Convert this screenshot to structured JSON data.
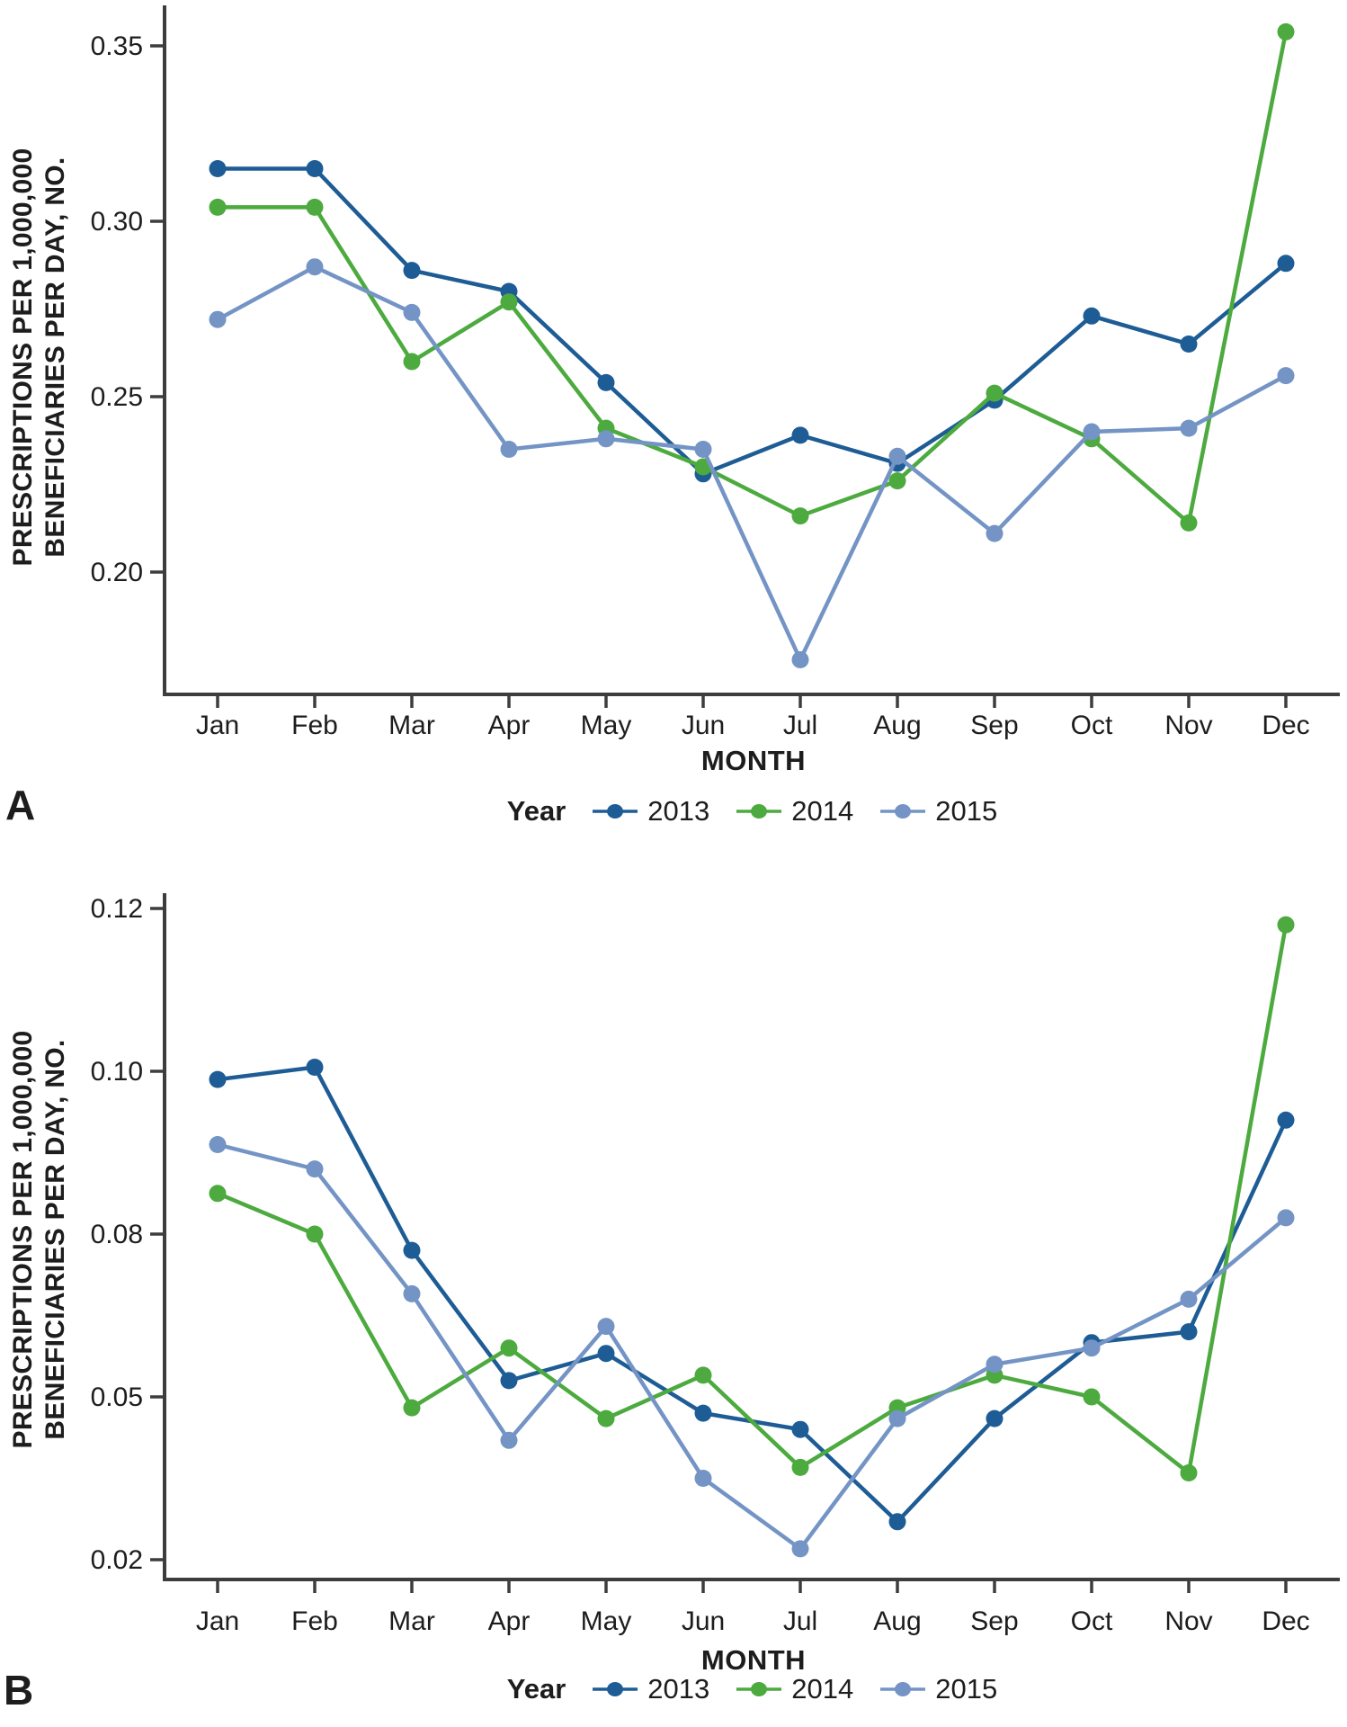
{
  "panels": [
    {
      "panel_label": "A",
      "y_axis_title_line1": "PRESCRIPTIONS PER 1,000,000",
      "y_axis_title_line2": "BENEFICIARIES PER DAY, NO.",
      "x_axis_title": "MONTH",
      "legend_title": "Year"
    },
    {
      "panel_label": "B",
      "y_axis_title_line1": "PRESCRIPTIONS PER 1,000,000",
      "y_axis_title_line2": "BENEFICIARIES PER DAY, NO.",
      "x_axis_title": "MONTH",
      "legend_title": "Year"
    }
  ],
  "colors": {
    "year2013": "#1e5c95",
    "year2014": "#4caa3e",
    "year2015": "#7394c5",
    "axis": "#3d3d3d",
    "text": "#1d1d1d"
  },
  "chart_data": [
    {
      "type": "line",
      "panel": "A",
      "xlabel": "MONTH",
      "ylabel": "PRESCRIPTIONS PER 1,000,000 BENEFICIARIES PER DAY, NO.",
      "categories": [
        "Jan",
        "Feb",
        "Mar",
        "Apr",
        "May",
        "Jun",
        "Jul",
        "Aug",
        "Sep",
        "Oct",
        "Nov",
        "Dec"
      ],
      "y_tick_labels": [
        "0.35",
        "0.30",
        "0.25",
        "0.20"
      ],
      "y_ticks": [
        0.35,
        0.3,
        0.25,
        0.2
      ],
      "ylim": [
        0.165,
        0.358
      ],
      "grid": false,
      "legend_position": "bottom",
      "legend_title": "Year",
      "series": [
        {
          "name": "2013",
          "color": "#1e5c95",
          "values": [
            0.315,
            0.315,
            0.286,
            0.28,
            0.254,
            0.228,
            0.239,
            0.231,
            0.249,
            0.273,
            0.265,
            0.288
          ]
        },
        {
          "name": "2014",
          "color": "#4caa3e",
          "values": [
            0.304,
            0.304,
            0.26,
            0.277,
            0.241,
            0.23,
            0.216,
            0.226,
            0.251,
            0.238,
            0.214,
            0.354
          ]
        },
        {
          "name": "2015",
          "color": "#7394c5",
          "values": [
            0.272,
            0.287,
            0.274,
            0.235,
            0.238,
            0.235,
            0.175,
            0.233,
            0.211,
            0.24,
            0.241,
            0.256
          ]
        }
      ]
    },
    {
      "type": "line",
      "panel": "B",
      "xlabel": "MONTH",
      "ylabel": "PRESCRIPTIONS PER 1,000,000 BENEFICIARIES PER DAY, NO.",
      "categories": [
        "Jan",
        "Feb",
        "Mar",
        "Apr",
        "May",
        "Jun",
        "Jul",
        "Aug",
        "Sep",
        "Oct",
        "Nov",
        "Dec"
      ],
      "y_tick_labels": [
        "0.12",
        "0.10",
        "0.08",
        "0.05",
        "0.02"
      ],
      "y_ticks": [
        0.12,
        0.1,
        0.08,
        0.05,
        0.02
      ],
      "ylim": [
        0.02,
        0.12
      ],
      "axis_note": "labeled ticks are evenly spaced although increments alternate 0.02/0.03",
      "grid": false,
      "legend_position": "bottom",
      "legend_title": "Year",
      "series": [
        {
          "name": "2013",
          "color": "#1e5c95",
          "values": [
            0.099,
            0.1005,
            0.077,
            0.053,
            0.058,
            0.047,
            0.044,
            0.027,
            0.046,
            0.06,
            0.062,
            0.094
          ]
        },
        {
          "name": "2014",
          "color": "#4caa3e",
          "values": [
            0.085,
            0.08,
            0.048,
            0.059,
            0.046,
            0.054,
            0.037,
            0.048,
            0.054,
            0.05,
            0.036,
            0.118
          ]
        },
        {
          "name": "2015",
          "color": "#7394c5",
          "values": [
            0.091,
            0.088,
            0.069,
            0.042,
            0.063,
            0.035,
            0.022,
            0.046,
            0.056,
            0.059,
            0.068,
            0.082
          ]
        }
      ]
    }
  ]
}
